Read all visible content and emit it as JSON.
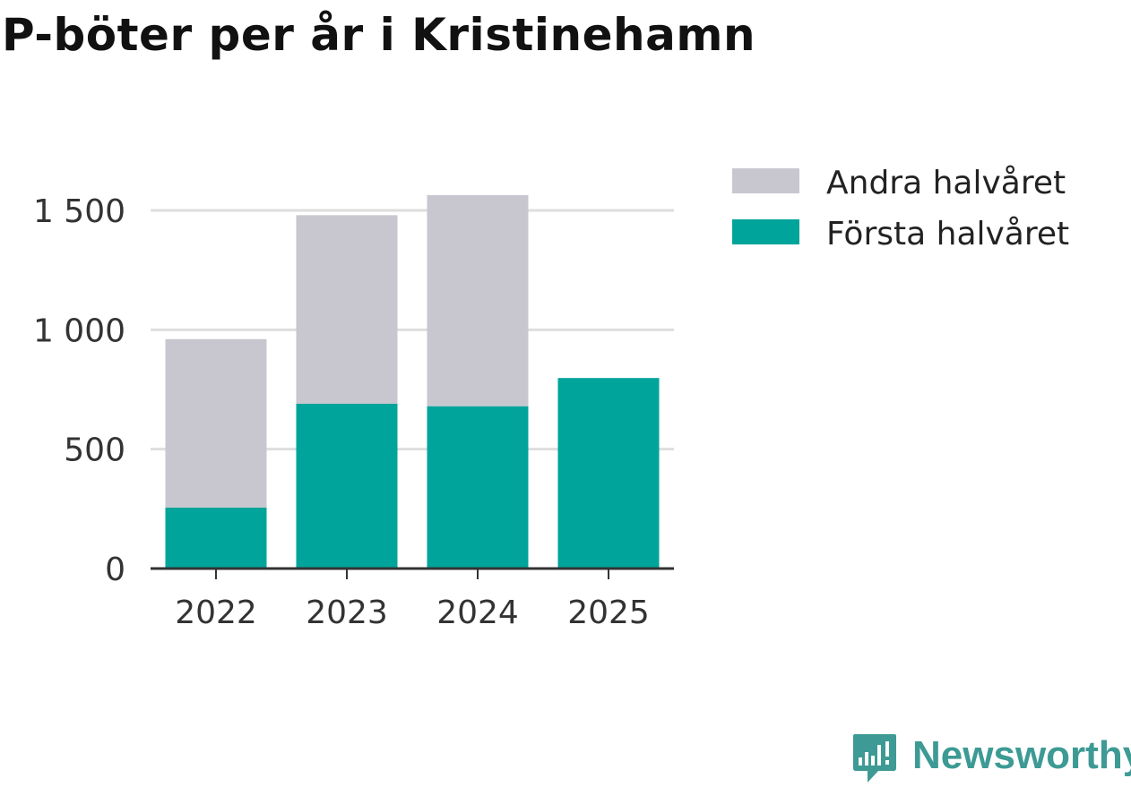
{
  "header": {
    "title": "P-böter per år i Kristinehamn"
  },
  "chart_data": {
    "type": "bar",
    "stacked": true,
    "title": "P-böter per år i Kristinehamn",
    "xlabel": "",
    "ylabel": "",
    "categories": [
      "2022",
      "2023",
      "2024",
      "2025"
    ],
    "series": [
      {
        "name": "Första halvåret",
        "color": "#00a49a",
        "values": [
          255,
          690,
          680,
          798
        ]
      },
      {
        "name": "Andra halvåret",
        "color": "#c8c7cf",
        "values": [
          706,
          790,
          884,
          0
        ]
      }
    ],
    "legend_order": [
      "Andra halvåret",
      "Första halvåret"
    ],
    "ylim": [
      0,
      1650
    ],
    "yticks": [
      0,
      500,
      1000,
      1500
    ],
    "ytick_labels": [
      "0",
      "500",
      "1 000",
      "1 500"
    ],
    "grid": true,
    "legend_position": "top-right"
  },
  "branding": {
    "name": "Newsworthy",
    "color": "#3d9a94"
  }
}
